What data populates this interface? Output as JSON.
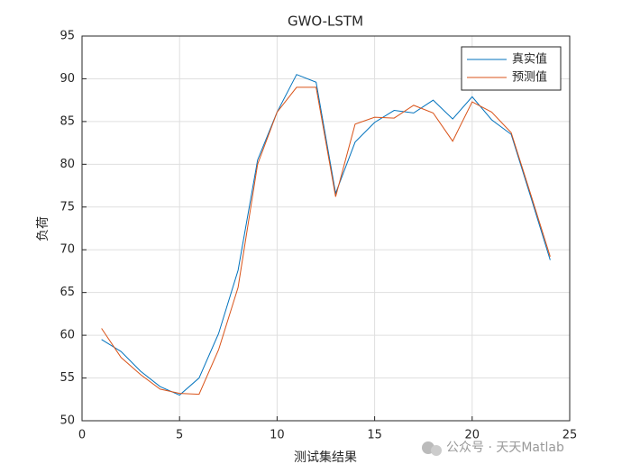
{
  "chart_data": {
    "type": "line",
    "title": "GWO-LSTM",
    "xlabel": "测试集结果",
    "ylabel": "负荷",
    "x": [
      1,
      2,
      3,
      4,
      5,
      6,
      7,
      8,
      9,
      10,
      11,
      12,
      13,
      14,
      15,
      16,
      17,
      18,
      19,
      20,
      21,
      22,
      23,
      24
    ],
    "series": [
      {
        "name": "真实值",
        "color": "#0072bd",
        "values": [
          59.5,
          58.1,
          55.8,
          54.0,
          53.0,
          55.0,
          60.2,
          67.6,
          80.5,
          86.1,
          90.5,
          89.6,
          76.6,
          82.6,
          84.9,
          86.3,
          86.0,
          87.5,
          85.3,
          87.9,
          85.2,
          83.5,
          76.2,
          68.8
        ]
      },
      {
        "name": "预测值",
        "color": "#d95319",
        "values": [
          60.8,
          57.4,
          55.4,
          53.7,
          53.2,
          53.1,
          58.3,
          65.6,
          80.0,
          86.1,
          89.0,
          89.0,
          76.2,
          84.7,
          85.5,
          85.4,
          86.9,
          86.0,
          82.7,
          87.3,
          86.1,
          83.7,
          76.5,
          69.2
        ]
      }
    ],
    "xlim": [
      0,
      25
    ],
    "xticks": [
      0,
      5,
      10,
      15,
      20,
      25
    ],
    "ylim": [
      50,
      95
    ],
    "yticks": [
      50,
      55,
      60,
      65,
      70,
      75,
      80,
      85,
      90,
      95
    ],
    "grid": true,
    "legend": "northeast"
  },
  "watermark": "公众号 · 天天Matlab"
}
